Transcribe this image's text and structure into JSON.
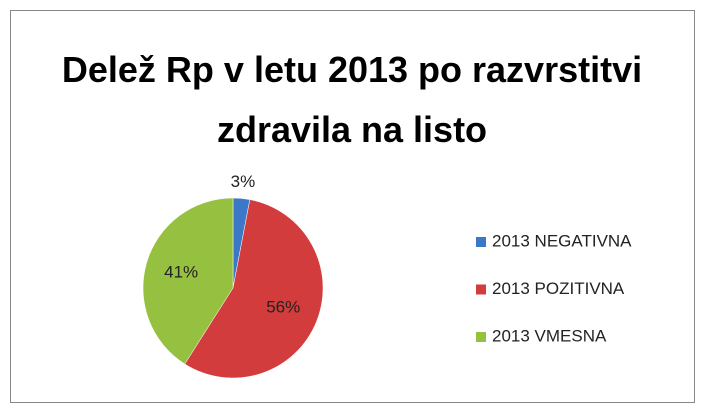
{
  "chart_data": {
    "type": "pie",
    "title": "Delež Rp v letu 2013 po razvrstitvi zdravila na listo",
    "categories": [
      "2013 NEGATIVNA",
      "2013 POZITIVNA",
      "2013 VMESNA"
    ],
    "values": [
      3,
      56,
      41
    ],
    "value_labels": [
      "3%",
      "56%",
      "41%"
    ],
    "colors": [
      "#3c78c8",
      "#d23c3c",
      "#96c040"
    ],
    "legend": "right"
  }
}
